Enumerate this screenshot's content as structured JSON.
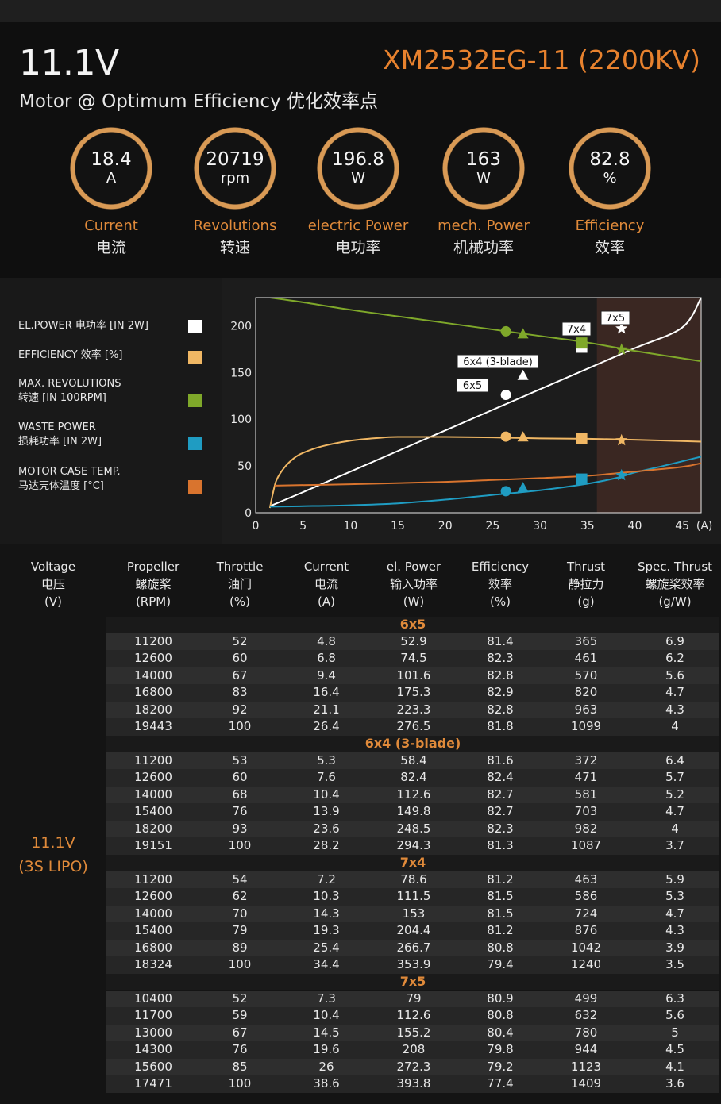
{
  "header": {
    "voltage": "11.1V",
    "subtitle": "Motor @ Optimum Efficiency  优化效率点",
    "model": "XM2532EG-11 (2200KV)"
  },
  "metrics": [
    {
      "value": "18.4",
      "unit": "A",
      "en": "Current",
      "cn": "电流"
    },
    {
      "value": "20719",
      "unit": "rpm",
      "en": "Revolutions",
      "cn": "转速"
    },
    {
      "value": "196.8",
      "unit": "W",
      "en": "electric Power",
      "cn": "电功率"
    },
    {
      "value": "163",
      "unit": "W",
      "en": "mech. Power",
      "cn": "机械功率"
    },
    {
      "value": "82.8",
      "unit": "%",
      "en": "Efficiency",
      "cn": "效率"
    }
  ],
  "legend": [
    {
      "line1": "EL.POWER 电功率 [IN 2W]",
      "line2": "",
      "color": "#ffffff"
    },
    {
      "line1": "EFFICIENCY 效率 [%]",
      "line2": "",
      "color": "#f0b764"
    },
    {
      "line1": "MAX. REVOLUTIONS",
      "line2": "转速 [IN 100RPM]",
      "color": "#7fa82a"
    },
    {
      "line1": "WASTE POWER",
      "line2": "损耗功率 [IN 2W]",
      "color": "#1f9cc2"
    },
    {
      "line1": "MOTOR CASE TEMP.",
      "line2": "马达壳体温度 [°C]",
      "color": "#d9742e"
    }
  ],
  "chart_data": {
    "type": "line",
    "xlabel": "(A)",
    "x_ticks": [
      "0",
      "5",
      "10",
      "15",
      "20",
      "25",
      "30",
      "35",
      "40",
      "45"
    ],
    "y_ticks": [
      "0",
      "50",
      "100",
      "150",
      "200"
    ],
    "xlim": [
      0,
      47
    ],
    "ylim": [
      0,
      230
    ],
    "shaded_region_x": [
      36,
      47
    ],
    "grid": false,
    "series": [
      {
        "id": "el_power",
        "color": "#ffffff",
        "points": [
          [
            1.5,
            7
          ],
          [
            5,
            22
          ],
          [
            10,
            44
          ],
          [
            15,
            66
          ],
          [
            20,
            88
          ],
          [
            25,
            110
          ],
          [
            30,
            132
          ],
          [
            35,
            154
          ],
          [
            40,
            176
          ],
          [
            45,
            198
          ],
          [
            47,
            230
          ]
        ]
      },
      {
        "id": "efficiency",
        "color": "#f0b764",
        "points": [
          [
            1.5,
            5
          ],
          [
            1.8,
            20
          ],
          [
            2.2,
            35
          ],
          [
            3,
            48
          ],
          [
            4,
            58
          ],
          [
            5,
            64
          ],
          [
            7,
            71
          ],
          [
            10,
            77
          ],
          [
            13,
            80
          ],
          [
            15,
            81
          ],
          [
            20,
            81
          ],
          [
            25,
            80.5
          ],
          [
            30,
            79.5
          ],
          [
            35,
            79
          ],
          [
            40,
            78
          ],
          [
            47,
            76
          ]
        ]
      },
      {
        "id": "revolutions",
        "color": "#7fa82a",
        "points": [
          [
            1.5,
            230
          ],
          [
            5,
            225
          ],
          [
            10,
            217
          ],
          [
            15,
            210
          ],
          [
            20,
            203
          ],
          [
            25,
            196
          ],
          [
            30,
            189
          ],
          [
            35,
            182
          ],
          [
            40,
            173
          ],
          [
            47,
            162
          ]
        ]
      },
      {
        "id": "waste_power",
        "color": "#1f9cc2",
        "points": [
          [
            1.5,
            6.5
          ],
          [
            5,
            7
          ],
          [
            10,
            8
          ],
          [
            15,
            10
          ],
          [
            20,
            14
          ],
          [
            25,
            19
          ],
          [
            30,
            24
          ],
          [
            35,
            31
          ],
          [
            38,
            37
          ],
          [
            40,
            43
          ],
          [
            43,
            50
          ],
          [
            47,
            60
          ]
        ]
      },
      {
        "id": "case_temp",
        "color": "#d9742e",
        "points": [
          [
            2,
            29
          ],
          [
            10,
            30.5
          ],
          [
            20,
            33
          ],
          [
            25,
            35
          ],
          [
            30,
            37
          ],
          [
            35,
            39.5
          ],
          [
            40,
            44
          ],
          [
            45,
            49
          ],
          [
            47,
            53
          ]
        ]
      }
    ],
    "operating_points": [
      {
        "label": "6x5",
        "marker": "circle",
        "current": [
          25,
          26.4
        ],
        "el_power": [
          124.7,
          126
        ],
        "efficiency": 81.4,
        "revolutions": 194,
        "waste_power": 23,
        "temp": 35
      },
      {
        "label": "6x4 (3-blade)",
        "marker": "triangle",
        "current": [
          28,
          28.2
        ],
        "el_power": [
          145,
          147
        ],
        "efficiency": 81.3,
        "revolutions": 191.5,
        "waste_power": 27,
        "temp": 36
      },
      {
        "label": "7x4",
        "marker": "square",
        "current": [
          34.4,
          34.4
        ],
        "el_power": [
          175,
          177
        ],
        "efficiency": 79.4,
        "revolutions": 181.5,
        "waste_power": 36,
        "temp": 39
      },
      {
        "label": "7x5",
        "marker": "star",
        "current": [
          38.6,
          38.6
        ],
        "el_power": [
          195,
          197
        ],
        "efficiency": 77.4,
        "revolutions": 174.5,
        "waste_power": 40,
        "temp": 43
      }
    ]
  },
  "table": {
    "columns": [
      {
        "en": "Voltage",
        "cn": "电压",
        "unit": "(V)"
      },
      {
        "en": "Propeller",
        "cn": "螺旋桨",
        "unit": "(RPM)"
      },
      {
        "en": "Throttle",
        "cn": "油门",
        "unit": "(%)"
      },
      {
        "en": "Current",
        "cn": "电流",
        "unit": "(A)"
      },
      {
        "en": "el. Power",
        "cn": "输入功率",
        "unit": "(W)"
      },
      {
        "en": "Efficiency",
        "cn": "效率",
        "unit": "(%)"
      },
      {
        "en": "Thrust",
        "cn": "静拉力",
        "unit": "(g)"
      },
      {
        "en": "Spec. Thrust",
        "cn": "螺旋桨效率",
        "unit": "(g/W)"
      }
    ],
    "voltage_label": "11.1V",
    "voltage_sub": "(3S LIPO)",
    "groups": [
      {
        "name": "6x5",
        "rows": [
          [
            "11200",
            "52",
            "4.8",
            "52.9",
            "81.4",
            "365",
            "6.9"
          ],
          [
            "12600",
            "60",
            "6.8",
            "74.5",
            "82.3",
            "461",
            "6.2"
          ],
          [
            "14000",
            "67",
            "9.4",
            "101.6",
            "82.8",
            "570",
            "5.6"
          ],
          [
            "16800",
            "83",
            "16.4",
            "175.3",
            "82.9",
            "820",
            "4.7"
          ],
          [
            "18200",
            "92",
            "21.1",
            "223.3",
            "82.8",
            "963",
            "4.3"
          ],
          [
            "19443",
            "100",
            "26.4",
            "276.5",
            "81.8",
            "1099",
            "4"
          ]
        ]
      },
      {
        "name": "6x4 (3-blade)",
        "rows": [
          [
            "11200",
            "53",
            "5.3",
            "58.4",
            "81.6",
            "372",
            "6.4"
          ],
          [
            "12600",
            "60",
            "7.6",
            "82.4",
            "82.4",
            "471",
            "5.7"
          ],
          [
            "14000",
            "68",
            "10.4",
            "112.6",
            "82.7",
            "581",
            "5.2"
          ],
          [
            "15400",
            "76",
            "13.9",
            "149.8",
            "82.7",
            "703",
            "4.7"
          ],
          [
            "18200",
            "93",
            "23.6",
            "248.5",
            "82.3",
            "982",
            "4"
          ],
          [
            "19151",
            "100",
            "28.2",
            "294.3",
            "81.3",
            "1087",
            "3.7"
          ]
        ]
      },
      {
        "name": "7x4",
        "rows": [
          [
            "11200",
            "54",
            "7.2",
            "78.6",
            "81.2",
            "463",
            "5.9"
          ],
          [
            "12600",
            "62",
            "10.3",
            "111.5",
            "81.5",
            "586",
            "5.3"
          ],
          [
            "14000",
            "70",
            "14.3",
            "153",
            "81.5",
            "724",
            "4.7"
          ],
          [
            "15400",
            "79",
            "19.3",
            "204.4",
            "81.2",
            "876",
            "4.3"
          ],
          [
            "16800",
            "89",
            "25.4",
            "266.7",
            "80.8",
            "1042",
            "3.9"
          ],
          [
            "18324",
            "100",
            "34.4",
            "353.9",
            "79.4",
            "1240",
            "3.5"
          ]
        ]
      },
      {
        "name": "7x5",
        "rows": [
          [
            "10400",
            "52",
            "7.3",
            "79",
            "80.9",
            "499",
            "6.3"
          ],
          [
            "11700",
            "59",
            "10.4",
            "112.6",
            "80.8",
            "632",
            "5.6"
          ],
          [
            "13000",
            "67",
            "14.5",
            "155.2",
            "80.4",
            "780",
            "5"
          ],
          [
            "14300",
            "76",
            "19.6",
            "208",
            "79.8",
            "944",
            "4.5"
          ],
          [
            "15600",
            "85",
            "26",
            "272.3",
            "79.2",
            "1123",
            "4.1"
          ],
          [
            "17471",
            "100",
            "38.6",
            "393.8",
            "77.4",
            "1409",
            "3.6"
          ]
        ]
      }
    ]
  }
}
